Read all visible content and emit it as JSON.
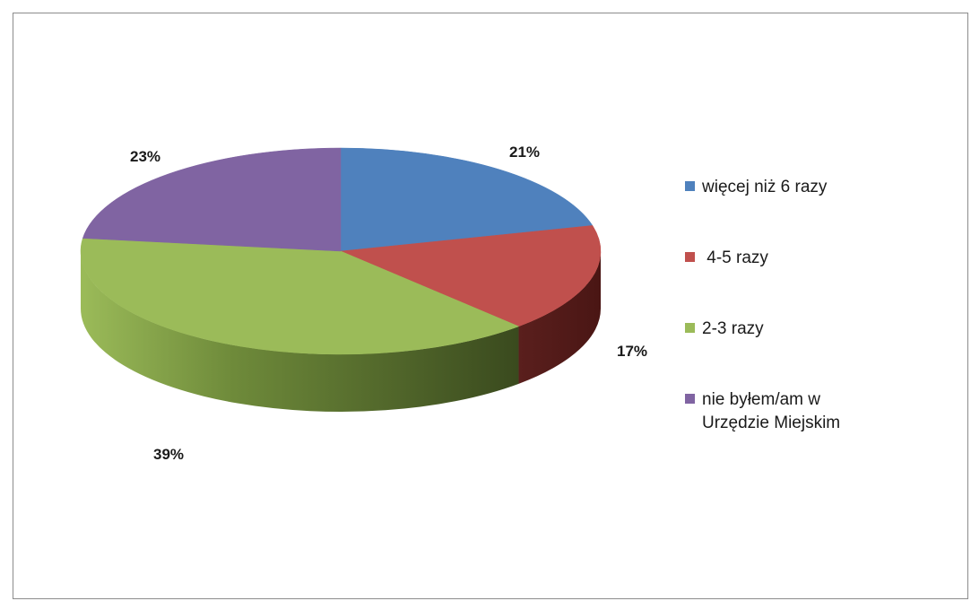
{
  "chart_data": {
    "type": "pie",
    "style": "3d-pie",
    "categories": [
      "więcej niż 6 razy",
      " 4-5 razy",
      "2-3 razy",
      "nie byłem/am w Urzędzie Miejskim"
    ],
    "values": [
      21,
      17,
      39,
      23
    ],
    "value_labels": [
      "21%",
      "17%",
      "39%",
      "23%"
    ],
    "colors": [
      "#4f81bd",
      "#c0504d",
      "#9bbb59",
      "#8064a2"
    ],
    "legend_position": "right"
  }
}
